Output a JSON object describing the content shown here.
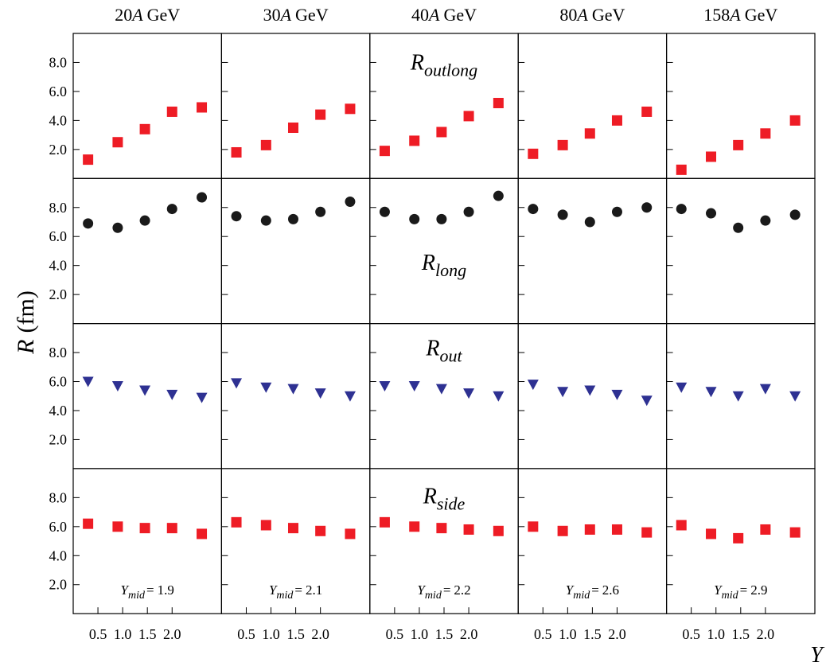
{
  "chart_data": {
    "type": "scatter",
    "ylabel_symbol": "R",
    "ylabel_unit": "(fm)",
    "xlabel": "Y",
    "x": [
      0.3,
      0.9,
      1.45,
      2.0,
      2.6
    ],
    "xlim": [
      0,
      3
    ],
    "xticks": [
      0.5,
      {
        "value": 1,
        "label": "1.0"
      },
      1.5,
      {
        "value": 2,
        "label": "2.0"
      }
    ],
    "ylim": [
      0,
      10
    ],
    "yticks": [
      {
        "value": 2,
        "label": "2.0"
      },
      {
        "value": 4,
        "label": "4.0"
      },
      {
        "value": 6,
        "label": "6.0"
      },
      {
        "value": 8,
        "label": "8.0"
      }
    ],
    "ymid_symbol": "Y",
    "ymid_sub": "mid",
    "ymid_eq": "=",
    "columns": [
      {
        "energy": "20",
        "symbol": "A",
        "unit": "GeV",
        "ymid": 1.9
      },
      {
        "energy": "30",
        "symbol": "A",
        "unit": "GeV",
        "ymid": 2.1
      },
      {
        "energy": "40",
        "symbol": "A",
        "unit": "GeV",
        "ymid": 2.2
      },
      {
        "energy": "80",
        "symbol": "A",
        "unit": "GeV",
        "ymid": 2.6
      },
      {
        "energy": "158",
        "symbol": "A",
        "unit": "GeV",
        "ymid": 2.9
      }
    ],
    "rows": [
      {
        "symbol": "R",
        "sub": "outlong",
        "marker": "square",
        "color": "#ee1c25",
        "values": [
          [
            1.3,
            2.5,
            3.4,
            4.6,
            4.9
          ],
          [
            1.8,
            2.3,
            3.5,
            4.4,
            4.8
          ],
          [
            1.9,
            2.6,
            3.2,
            4.3,
            5.2
          ],
          [
            1.7,
            2.3,
            3.1,
            4.0,
            4.6
          ],
          [
            0.6,
            1.5,
            2.3,
            3.1,
            4.0
          ]
        ]
      },
      {
        "symbol": "R",
        "sub": "long",
        "marker": "circle",
        "color": "#1a1a1a",
        "values": [
          [
            6.9,
            6.6,
            7.1,
            7.9,
            8.7
          ],
          [
            7.4,
            7.1,
            7.2,
            7.7,
            8.4
          ],
          [
            7.7,
            7.2,
            7.2,
            7.7,
            8.8
          ],
          [
            7.9,
            7.5,
            7.0,
            7.7,
            8.0
          ],
          [
            7.9,
            7.6,
            6.6,
            7.1,
            7.5
          ]
        ]
      },
      {
        "symbol": "R",
        "sub": "out",
        "marker": "triangle-down",
        "color": "#2e3192",
        "values": [
          [
            6.0,
            5.7,
            5.4,
            5.1,
            4.9
          ],
          [
            5.9,
            5.6,
            5.5,
            5.2,
            5.0
          ],
          [
            5.7,
            5.7,
            5.5,
            5.2,
            5.0
          ],
          [
            5.8,
            5.3,
            5.4,
            5.1,
            4.7
          ],
          [
            5.6,
            5.3,
            5.0,
            5.5,
            5.0
          ]
        ]
      },
      {
        "symbol": "R",
        "sub": "side",
        "marker": "square",
        "color": "#ee1c25",
        "values": [
          [
            6.2,
            6.0,
            5.9,
            5.9,
            5.5
          ],
          [
            6.3,
            6.1,
            5.9,
            5.7,
            5.5
          ],
          [
            6.3,
            6.0,
            5.9,
            5.8,
            5.7
          ],
          [
            6.0,
            5.7,
            5.8,
            5.8,
            5.6
          ],
          [
            6.1,
            5.5,
            5.2,
            5.8,
            5.6
          ]
        ]
      }
    ]
  }
}
